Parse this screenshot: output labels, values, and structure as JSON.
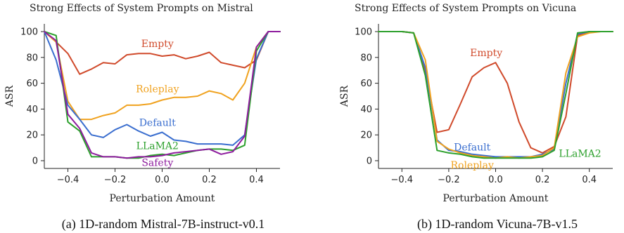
{
  "chart_data": [
    {
      "type": "line",
      "title": "Strong Effects of System Prompts on Mistral",
      "caption": "(a) 1D-random Mistral-7B-instruct-v0.1",
      "xlabel": "Perturbation Amount",
      "ylabel": "ASR",
      "xlim": [
        -0.5,
        0.5
      ],
      "ylim": [
        -6,
        106
      ],
      "xticks": [
        -0.4,
        -0.2,
        0.0,
        0.2,
        0.4
      ],
      "xtick_labels": [
        "−0.4",
        "−0.2",
        "0.0",
        "0.2",
        "0.4"
      ],
      "yticks": [
        0,
        20,
        40,
        60,
        80,
        100
      ],
      "grid": false,
      "x": [
        -0.5,
        -0.45,
        -0.4,
        -0.35,
        -0.3,
        -0.25,
        -0.2,
        -0.15,
        -0.1,
        -0.05,
        0.0,
        0.05,
        0.1,
        0.15,
        0.2,
        0.25,
        0.3,
        0.35,
        0.4,
        0.45,
        0.5
      ],
      "series": [
        {
          "name": "Empty",
          "color": "#d04a2b",
          "label_x": -0.02,
          "label_y": 88,
          "values": [
            100,
            92,
            83,
            67,
            71,
            76,
            75,
            82,
            83,
            83,
            81,
            82,
            79,
            81,
            84,
            76,
            74,
            72,
            78,
            100,
            100
          ]
        },
        {
          "name": "Roleplay",
          "color": "#f0a21f",
          "label_x": -0.02,
          "label_y": 53,
          "values": [
            100,
            92,
            46,
            32,
            32,
            35,
            37,
            43,
            43,
            44,
            47,
            49,
            49,
            50,
            54,
            52,
            47,
            60,
            88,
            100,
            100
          ]
        },
        {
          "name": "Default",
          "color": "#3a6ecf",
          "label_x": -0.02,
          "label_y": 27,
          "values": [
            100,
            78,
            43,
            32,
            20,
            18,
            24,
            28,
            23,
            19,
            22,
            16,
            15,
            13,
            13,
            13,
            12,
            20,
            79,
            100,
            100
          ]
        },
        {
          "name": "LLaMA2",
          "color": "#2ca02c",
          "label_x": -0.02,
          "label_y": 9,
          "values": [
            100,
            97,
            30,
            23,
            3,
            3,
            3,
            2,
            2,
            4,
            5,
            4,
            6,
            8,
            9,
            9,
            8,
            12,
            85,
            100,
            100
          ]
        },
        {
          "name": "Safety",
          "color": "#8e1c9e",
          "label_x": -0.02,
          "label_y": -4,
          "values": [
            100,
            93,
            36,
            25,
            6,
            3,
            3,
            2,
            3,
            3,
            4,
            6,
            7,
            8,
            9,
            5,
            7,
            19,
            88,
            100,
            100
          ]
        }
      ]
    },
    {
      "type": "line",
      "title": "Strong Effects of System Prompts on Vicuna",
      "caption": "(b) 1D-random Vicuna-7B-v1.5",
      "xlabel": "Perturbation Amount",
      "ylabel": "ASR",
      "xlim": [
        -0.5,
        0.5
      ],
      "ylim": [
        -6,
        106
      ],
      "xticks": [
        -0.4,
        -0.2,
        0.0,
        0.2,
        0.4
      ],
      "xtick_labels": [
        "−0.4",
        "−0.2",
        "0.0",
        "0.2",
        "0.4"
      ],
      "yticks": [
        0,
        20,
        40,
        60,
        80,
        100
      ],
      "grid": false,
      "x": [
        -0.5,
        -0.45,
        -0.4,
        -0.35,
        -0.3,
        -0.25,
        -0.2,
        -0.15,
        -0.1,
        -0.05,
        0.0,
        0.05,
        0.1,
        0.15,
        0.2,
        0.25,
        0.3,
        0.35,
        0.4,
        0.45,
        0.5
      ],
      "series": [
        {
          "name": "Empty",
          "color": "#d04a2b",
          "label_x": -0.04,
          "label_y": 81,
          "values": [
            100,
            100,
            100,
            99,
            70,
            22,
            24,
            44,
            65,
            72,
            76,
            60,
            30,
            10,
            6,
            11,
            34,
            97,
            100,
            100,
            100
          ]
        },
        {
          "name": "Default",
          "color": "#3a6ecf",
          "label_x": -0.1,
          "label_y": 8,
          "values": [
            100,
            100,
            100,
            99,
            72,
            16,
            8,
            7,
            5,
            4,
            3,
            3,
            3,
            3,
            5,
            9,
            60,
            98,
            100,
            100,
            100
          ]
        },
        {
          "name": "Roleplay",
          "color": "#f0a21f",
          "label_x": -0.1,
          "label_y": -6,
          "values": [
            100,
            100,
            100,
            99,
            78,
            15,
            9,
            6,
            4,
            3,
            2,
            3,
            2,
            3,
            4,
            10,
            68,
            96,
            99,
            100,
            100
          ]
        },
        {
          "name": "LLaMA2",
          "color": "#2ca02c",
          "label_x": 0.27,
          "label_y": 3,
          "values": [
            100,
            100,
            100,
            99,
            66,
            8,
            6,
            5,
            3,
            2,
            2,
            2,
            2,
            2,
            3,
            8,
            52,
            99,
            100,
            100,
            100
          ]
        }
      ]
    }
  ]
}
